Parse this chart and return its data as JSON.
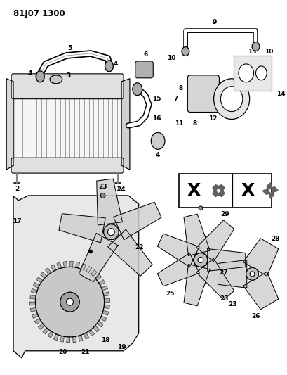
{
  "title": "81J07 1300",
  "bg_color": "#ffffff",
  "title_fontsize": 8.5,
  "title_fontweight": "bold"
}
